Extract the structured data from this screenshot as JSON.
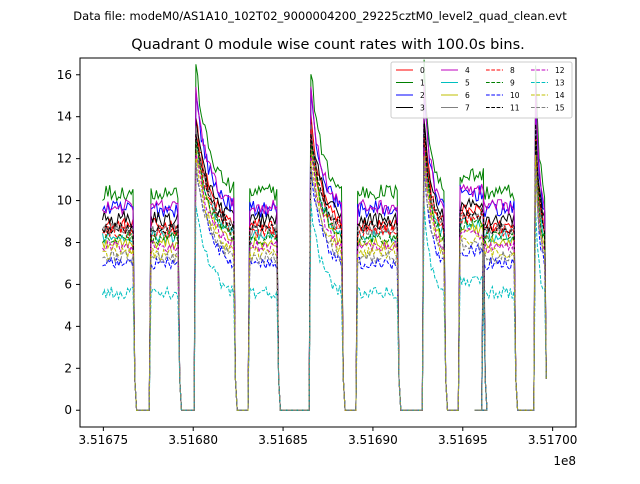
{
  "header": {
    "file_label": "Data file: modeM0/AS1A10_102T02_9000004200_29225cztM0_level2_quad_clean.evt"
  },
  "chart_data": {
    "type": "line",
    "title": "Quadrant 0 module wise count rates with 100.0s bins.",
    "xlabel": "",
    "ylabel": "",
    "x_offset_label": "1e8",
    "xlim": [
      351673700,
      351701300
    ],
    "ylim": [
      -0.8,
      16.8
    ],
    "x_ticks": [
      351675000,
      351680000,
      351685000,
      351690000,
      351695000,
      351700000
    ],
    "x_tick_labels": [
      "3.51675",
      "3.51680",
      "3.51685",
      "3.51690",
      "3.51695",
      "3.51700"
    ],
    "y_ticks": [
      0,
      2,
      4,
      6,
      8,
      10,
      12,
      14,
      16
    ],
    "y_tick_labels": [
      "0",
      "2",
      "4",
      "6",
      "8",
      "10",
      "12",
      "14",
      "16"
    ],
    "legend_position": "top-right",
    "bin_seconds": 100,
    "segments": [
      {
        "start": 351674950,
        "end": 351676650,
        "shape": "flat"
      },
      {
        "start": 351677650,
        "end": 351679150,
        "shape": "flat"
      },
      {
        "start": 351680150,
        "end": 351682250,
        "shape": "decay"
      },
      {
        "start": 351683150,
        "end": 351684650,
        "shape": "flat"
      },
      {
        "start": 351686550,
        "end": 351688250,
        "shape": "decay"
      },
      {
        "start": 351689150,
        "end": 351691350,
        "shape": "flat"
      },
      {
        "start": 351692850,
        "end": 351693950,
        "shape": "decay"
      },
      {
        "start": 351694850,
        "end": 351696150,
        "shape": "mid"
      },
      {
        "start": 351696150,
        "end": 351697850,
        "shape": "flat"
      },
      {
        "start": 351699050,
        "end": 351699550,
        "shape": "decay"
      }
    ],
    "series": [
      {
        "name": "0",
        "color": "#ff0000",
        "dash": "solid",
        "base": 8.8,
        "peak": 13.4,
        "noise": 0.35
      },
      {
        "name": "1",
        "color": "#008000",
        "dash": "solid",
        "base": 10.4,
        "peak": 15.9,
        "noise": 0.4
      },
      {
        "name": "2",
        "color": "#0000ff",
        "dash": "solid",
        "base": 9.6,
        "peak": 14.6,
        "noise": 0.4
      },
      {
        "name": "3",
        "color": "#000000",
        "dash": "solid",
        "base": 9.1,
        "peak": 13.2,
        "noise": 0.4
      },
      {
        "name": "4",
        "color": "#bf00bf",
        "dash": "solid",
        "base": 9.7,
        "peak": 14.9,
        "noise": 0.35
      },
      {
        "name": "5",
        "color": "#00bfbf",
        "dash": "solid",
        "base": 8.3,
        "peak": 12.6,
        "noise": 0.3
      },
      {
        "name": "6",
        "color": "#bfbf00",
        "dash": "solid",
        "base": 8.0,
        "peak": 12.2,
        "noise": 0.3
      },
      {
        "name": "7",
        "color": "#808080",
        "dash": "solid",
        "base": 8.6,
        "peak": 12.9,
        "noise": 0.3
      },
      {
        "name": "8",
        "color": "#ff0000",
        "dash": "dashed",
        "base": 8.5,
        "peak": 12.8,
        "noise": 0.3
      },
      {
        "name": "9",
        "color": "#008000",
        "dash": "dashed",
        "base": 8.2,
        "peak": 12.4,
        "noise": 0.3
      },
      {
        "name": "10",
        "color": "#0000ff",
        "dash": "dashed",
        "base": 7.0,
        "peak": 11.2,
        "noise": 0.3
      },
      {
        "name": "11",
        "color": "#000000",
        "dash": "dashed",
        "base": 8.7,
        "peak": 12.9,
        "noise": 0.3
      },
      {
        "name": "12",
        "color": "#bf00bf",
        "dash": "dashed",
        "base": 7.8,
        "peak": 11.9,
        "noise": 0.3
      },
      {
        "name": "13",
        "color": "#00bfbf",
        "dash": "dashed",
        "base": 5.6,
        "peak": 9.2,
        "noise": 0.3
      },
      {
        "name": "14",
        "color": "#bfbf00",
        "dash": "dashed",
        "base": 7.5,
        "peak": 11.6,
        "noise": 0.3
      },
      {
        "name": "15",
        "color": "#808080",
        "dash": "dashed",
        "base": 7.3,
        "peak": 11.2,
        "noise": 0.3
      }
    ]
  }
}
